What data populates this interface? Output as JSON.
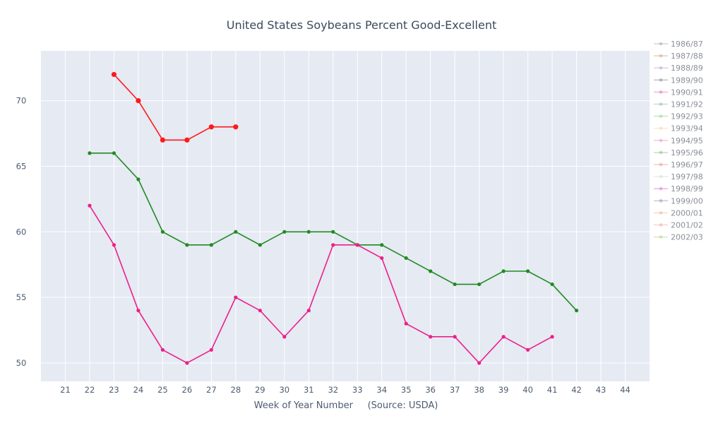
{
  "chart_data": {
    "type": "line",
    "title": "United States Soybeans Percent Good-Excellent",
    "xlabel": "Week of Year Number     (Source: USDA)",
    "ylabel": "",
    "xlim": [
      20,
      45
    ],
    "ylim": [
      48.6,
      73.8
    ],
    "x_ticks": [
      21,
      22,
      23,
      24,
      25,
      26,
      27,
      28,
      29,
      30,
      31,
      32,
      33,
      34,
      35,
      36,
      37,
      38,
      39,
      40,
      41,
      42,
      43,
      44
    ],
    "y_ticks": [
      50,
      55,
      60,
      65,
      70
    ],
    "grid": true,
    "legend_position": "right",
    "legend": [
      {
        "label": "1986/87",
        "color": "#9aa4b3"
      },
      {
        "label": "1987/88",
        "color": "#c9a07a"
      },
      {
        "label": "1988/89",
        "color": "#b99ad1"
      },
      {
        "label": "1989/90",
        "color": "#7f8597"
      },
      {
        "label": "1990/91",
        "color": "#e06bb0"
      },
      {
        "label": "1991/92",
        "color": "#8fb59a"
      },
      {
        "label": "1992/93",
        "color": "#86d77b"
      },
      {
        "label": "1993/94",
        "color": "#f1d6a3"
      },
      {
        "label": "1994/95",
        "color": "#e58fc0"
      },
      {
        "label": "1995/96",
        "color": "#7fbf7f"
      },
      {
        "label": "1996/97",
        "color": "#f08b8b"
      },
      {
        "label": "1997/98",
        "color": "#d8d8d8"
      },
      {
        "label": "1998/99",
        "color": "#d86fd0"
      },
      {
        "label": "1999/00",
        "color": "#8b93a8"
      },
      {
        "label": "2000/01",
        "color": "#f3b08a"
      },
      {
        "label": "2001/02",
        "color": "#f4a0a0"
      },
      {
        "label": "2002/03",
        "color": "#a9d07a"
      }
    ],
    "series": [
      {
        "color": "#228b22",
        "marker_size": 4,
        "x": [
          22,
          23,
          24,
          25,
          26,
          27,
          28,
          29,
          30,
          31,
          32,
          33,
          34,
          35,
          36,
          37,
          38,
          39,
          40,
          41,
          42
        ],
        "y": [
          66,
          66,
          64,
          60,
          59,
          59,
          60,
          59,
          60,
          60,
          60,
          59,
          59,
          58,
          57,
          56,
          56,
          57,
          57,
          56,
          54
        ]
      },
      {
        "color": "#ee1f8a",
        "marker_size": 4,
        "x": [
          22,
          23,
          24,
          25,
          26,
          27,
          28,
          29,
          30,
          31,
          32,
          33,
          34,
          35,
          36,
          37,
          38,
          39,
          40,
          41
        ],
        "y": [
          62,
          59,
          54,
          51,
          50,
          51,
          55,
          54,
          52,
          54,
          59,
          59,
          58,
          53,
          52,
          52,
          50,
          52,
          51,
          52
        ]
      },
      {
        "color": "#ff1a1a",
        "marker_size": 6,
        "x": [
          23,
          24,
          25,
          26,
          27,
          28
        ],
        "y": [
          72,
          70,
          67,
          67,
          68,
          68
        ]
      }
    ]
  }
}
